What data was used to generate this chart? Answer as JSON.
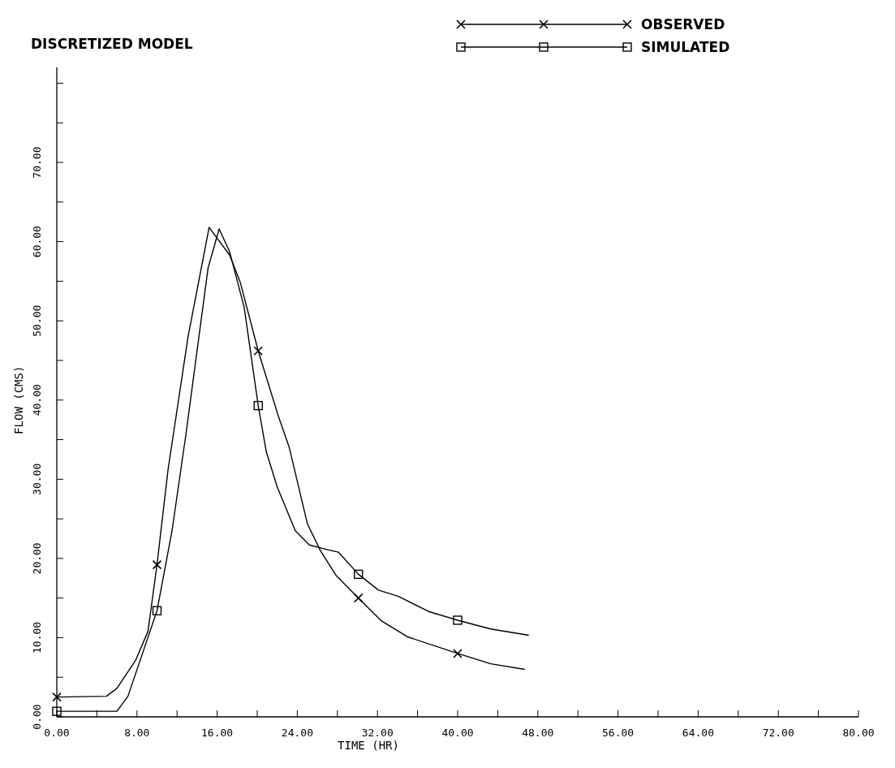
{
  "chart_data": {
    "type": "line",
    "title": "DISCRETIZED MODEL",
    "xlabel": "TIME (HR)",
    "ylabel": "FLOW (CMS)",
    "xlim": [
      0,
      80
    ],
    "ylim": [
      0,
      82
    ],
    "xticks": [
      {
        "value": 0,
        "label": "0.00"
      },
      {
        "value": 4,
        "label": null
      },
      {
        "value": 8,
        "label": "8.00"
      },
      {
        "value": 12,
        "label": null
      },
      {
        "value": 16,
        "label": "16.00"
      },
      {
        "value": 20,
        "label": null
      },
      {
        "value": 24,
        "label": "24.00"
      },
      {
        "value": 28,
        "label": null
      },
      {
        "value": 32,
        "label": "32.00"
      },
      {
        "value": 36,
        "label": null
      },
      {
        "value": 40,
        "label": "40.00"
      },
      {
        "value": 44,
        "label": null
      },
      {
        "value": 48,
        "label": "48.00"
      },
      {
        "value": 52,
        "label": null
      },
      {
        "value": 56,
        "label": "56.00"
      },
      {
        "value": 60,
        "label": null
      },
      {
        "value": 64,
        "label": "64.00"
      },
      {
        "value": 68,
        "label": null
      },
      {
        "value": 72,
        "label": "72.00"
      },
      {
        "value": 76,
        "label": null
      },
      {
        "value": 80,
        "label": "80.00"
      }
    ],
    "yticks": [
      {
        "value": 0,
        "label": "0.00"
      },
      {
        "value": 5,
        "label": null
      },
      {
        "value": 10,
        "label": "10.00"
      },
      {
        "value": 15,
        "label": null
      },
      {
        "value": 20,
        "label": "20.00"
      },
      {
        "value": 25,
        "label": null
      },
      {
        "value": 30,
        "label": "30.00"
      },
      {
        "value": 35,
        "label": null
      },
      {
        "value": 40,
        "label": "40.00"
      },
      {
        "value": 45,
        "label": null
      },
      {
        "value": 50,
        "label": "50.00"
      },
      {
        "value": 55,
        "label": null
      },
      {
        "value": 60,
        "label": "60.00"
      },
      {
        "value": 65,
        "label": null
      },
      {
        "value": 70,
        "label": "70.00"
      },
      {
        "value": 75,
        "label": null
      },
      {
        "value": 80,
        "label": null
      }
    ],
    "grid": false,
    "legend": "top right",
    "series": [
      {
        "name": "OBSERVED",
        "color": "#000000",
        "x": [
          0,
          4.95,
          6.0,
          7.85,
          9.1,
          10.0,
          11.1,
          13.1,
          15.2,
          17.25,
          18.3,
          20.1,
          22.1,
          23.2,
          25.0,
          26.3,
          27.9,
          30.1,
          32.4,
          35.0,
          40.0,
          43.3,
          46.7
        ],
        "values": [
          2.5,
          2.6,
          3.6,
          7.1,
          10.8,
          19.2,
          31.2,
          48.0,
          61.8,
          58.3,
          54.9,
          46.2,
          38.0,
          34.0,
          24.4,
          21.0,
          17.8,
          15.0,
          12.1,
          10.1,
          8.0,
          6.7,
          6.0
        ]
      },
      {
        "name": "SIMULATED",
        "color": "#000000",
        "x": [
          0,
          6.0,
          7.1,
          8.2,
          10.0,
          11.5,
          12.9,
          15.1,
          16.2,
          17.25,
          18.7,
          20.1,
          20.9,
          22.0,
          23.8,
          25.2,
          27.0,
          28.1,
          30.1,
          32.1,
          34.1,
          37.1,
          40.0,
          43.3,
          47.1
        ],
        "values": [
          0.7,
          0.7,
          2.6,
          6.7,
          13.4,
          23.5,
          35.8,
          56.7,
          61.6,
          58.7,
          51.7,
          39.3,
          33.5,
          29.0,
          23.5,
          21.7,
          21.1,
          20.8,
          18.0,
          16.0,
          15.2,
          13.3,
          12.2,
          11.1,
          10.3
        ]
      },
      {
        "type": "scatter",
        "color": "#000000",
        "marker": "cross",
        "x": [
          0,
          10.0,
          20.1,
          30.1,
          40.0
        ],
        "values": [
          2.5,
          19.2,
          46.2,
          15.0,
          8.0
        ]
      },
      {
        "type": "scatter",
        "color": "#000000",
        "marker": "square",
        "x": [
          0,
          10.0,
          20.1,
          30.1,
          40.0
        ],
        "values": [
          0.7,
          13.4,
          39.3,
          18.0,
          12.2
        ]
      }
    ]
  }
}
